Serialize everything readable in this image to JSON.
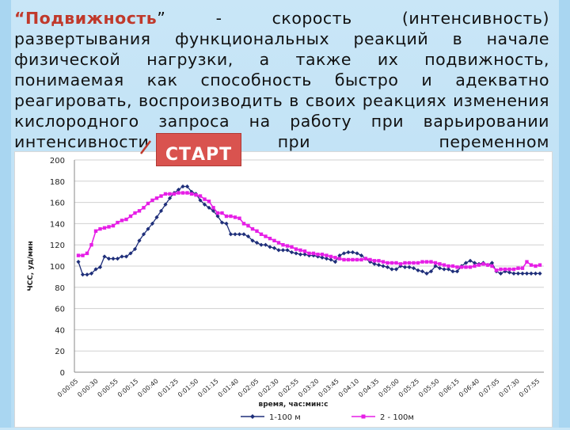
{
  "text": {
    "quote_open": "“",
    "lead_word": "Подвижность",
    "body": "” - скорость (интенсивность) развертывания функциональных реакций в начале физической нагрузки, а также их подвижность, понимаемая как способность быстро и адекватно реагировать, воспроизводить в своих реакциях изменения кислородного запроса на работу при варьировании интенсивности при переменном"
  },
  "badge": {
    "label": "СТАРТ",
    "color": "#d9534f"
  },
  "chart_data": {
    "type": "line",
    "title": "",
    "xlabel": "время, час:мин:с",
    "ylabel": "ЧСС, уд/мин",
    "ylim": [
      0,
      200
    ],
    "yticks": [
      0,
      20,
      40,
      60,
      80,
      100,
      120,
      140,
      160,
      180,
      200
    ],
    "xticks": [
      "0:00:05",
      "0:00:30",
      "0:00:55",
      "0:00:15",
      "0:00:40",
      "0:01:25",
      "0:01:50",
      "0:01:15",
      "0:01:40",
      "0:02:05",
      "0:02:30",
      "0:02:55",
      "0:03:20",
      "0:03:45",
      "0:04:10",
      "0:04:35",
      "0:05:00",
      "0:05:25",
      "0:05:50",
      "0:06:15",
      "0:06:40",
      "0:07:05",
      "0:07:30",
      "0:07:55"
    ],
    "grid": true,
    "legend": "bottom",
    "series": [
      {
        "name": "1-100 м",
        "color": "#1f2f7a",
        "marker": "diamond",
        "values": [
          104,
          92,
          92,
          93,
          97,
          99,
          109,
          107,
          107,
          107,
          109,
          109,
          112,
          116,
          124,
          130,
          135,
          140,
          146,
          152,
          158,
          164,
          169,
          172,
          175,
          175,
          170,
          168,
          162,
          158,
          155,
          152,
          147,
          141,
          140,
          130,
          130,
          130,
          130,
          128,
          124,
          122,
          120,
          120,
          118,
          117,
          115,
          115,
          115,
          113,
          112,
          111,
          111,
          110,
          110,
          109,
          108,
          107,
          106,
          104,
          110,
          112,
          113,
          113,
          112,
          110,
          107,
          104,
          102,
          101,
          100,
          99,
          97,
          97,
          100,
          99,
          99,
          98,
          96,
          95,
          93,
          95,
          100,
          98,
          97,
          97,
          95,
          95,
          100,
          103,
          105,
          103,
          102,
          103,
          101,
          103,
          95,
          93,
          95,
          94,
          93,
          93,
          93,
          93,
          93,
          93,
          93
        ]
      },
      {
        "name": "2 - 100м",
        "color": "#e61ee6",
        "marker": "square",
        "values": [
          110,
          110,
          112,
          120,
          133,
          135,
          136,
          137,
          138,
          141,
          143,
          144,
          147,
          150,
          152,
          155,
          159,
          162,
          164,
          166,
          168,
          168,
          168,
          169,
          169,
          169,
          168,
          167,
          166,
          163,
          161,
          155,
          150,
          150,
          147,
          147,
          146,
          145,
          140,
          138,
          135,
          133,
          130,
          128,
          126,
          124,
          122,
          120,
          119,
          118,
          116,
          115,
          114,
          112,
          112,
          111,
          111,
          110,
          109,
          108,
          107,
          106,
          106,
          106,
          106,
          106,
          107,
          106,
          105,
          105,
          104,
          103,
          103,
          103,
          102,
          103,
          103,
          103,
          103,
          104,
          104,
          104,
          103,
          102,
          101,
          100,
          100,
          99,
          99,
          99,
          99,
          100,
          101,
          102,
          101,
          100,
          96,
          97,
          97,
          97,
          97,
          98,
          98,
          104,
          101,
          100,
          101
        ]
      }
    ]
  }
}
